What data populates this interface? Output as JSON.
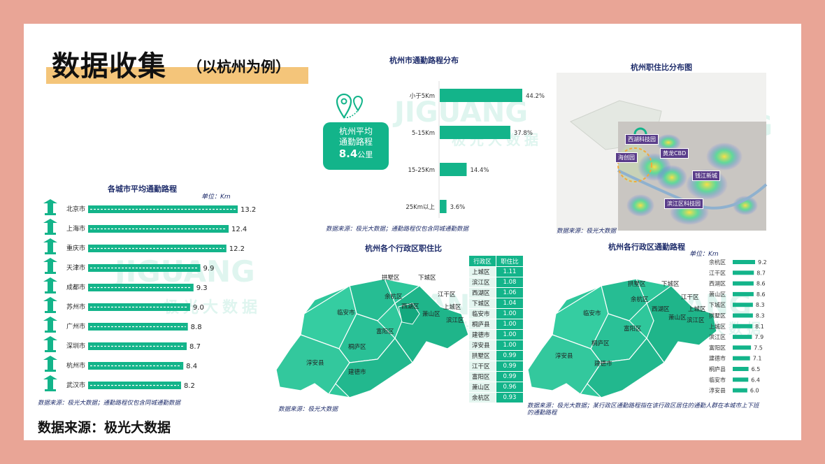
{
  "header": {
    "title": "数据收集",
    "subtitle": "（以杭州为例）"
  },
  "footer": {
    "source": "数据来源：极光大数据"
  },
  "watermark": {
    "brand": "JIGUANG",
    "cn": "极光大数据"
  },
  "colors": {
    "accent": "#13b48a",
    "page_bg": "#e9a596",
    "title_highlight": "#f4c57a",
    "label_navy": "#1f2d6b",
    "heat_tag": "#5a3d8a"
  },
  "city_chart": {
    "title": "各城市平均通勤路程",
    "unit": "单位：Km",
    "source": "数据来源：极光大数据；通勤路程仅包含同城通勤数据"
  },
  "distribution_chart": {
    "title": "杭州市通勤路程分布",
    "source": "数据来源：极光大数据；通勤路程仅包含同城通勤数据",
    "badge": {
      "line1": "杭州平均",
      "line2": "通勤路程",
      "value": "8.4",
      "unit": "公里"
    }
  },
  "heatmap_panel": {
    "title": "杭州职住比分布图",
    "source": "数据来源：极光大数据",
    "tags": [
      "西湖科技园",
      "黄龙CBD",
      "海创园",
      "钱江新城",
      "滨江区科技园"
    ]
  },
  "ratio_panel": {
    "title": "杭州各个行政区职住比",
    "source": "数据来源：极光大数据",
    "table_headers": [
      "行政区",
      "职住比"
    ],
    "map_labels": [
      "拱墅区",
      "下城区",
      "江干区",
      "余杭区",
      "上城区",
      "西湖区",
      "滨江区",
      "萧山区",
      "临安市",
      "富阳区",
      "桐庐区",
      "淳安县",
      "建德市"
    ]
  },
  "district_commute_panel": {
    "title": "杭州各行政区通勤路程",
    "unit": "单位：Km",
    "source_line1": "数据来源：极光大数据；某行政区通勤路程指在该行政区居住的通勤人群在本城市上下班",
    "source_line2": "的通勤路程",
    "map_labels": [
      "拱墅区",
      "下城区",
      "江干区",
      "余杭区",
      "上城区",
      "西湖区",
      "滨江区",
      "萧山区",
      "临安市",
      "富阳区",
      "桐庐区",
      "淳安县",
      "建德市"
    ]
  },
  "chart_data": [
    {
      "type": "bar",
      "title": "各城市平均通勤路程",
      "orientation": "horizontal",
      "categories": [
        "北京市",
        "上海市",
        "重庆市",
        "天津市",
        "成都市",
        "苏州市",
        "广州市",
        "深圳市",
        "杭州市",
        "武汉市"
      ],
      "values": [
        13.2,
        12.4,
        12.2,
        9.9,
        9.3,
        9.0,
        8.8,
        8.7,
        8.4,
        8.2
      ],
      "value_labels": [
        "13.2",
        "12.4",
        "12.2",
        "9.9",
        "9.3",
        "9.0",
        "8.8",
        "8.7",
        "8.4",
        "8.2"
      ],
      "xlim": [
        0,
        14
      ]
    },
    {
      "type": "bar",
      "title": "杭州市通勤路程分布",
      "orientation": "horizontal",
      "categories": [
        "小于5Km",
        "5-15Km",
        "15-25Km",
        "25Km以上"
      ],
      "values": [
        44.2,
        37.8,
        14.4,
        3.6
      ],
      "value_labels": [
        "44.2%",
        "37.8%",
        "14.4%",
        "3.6%"
      ],
      "xlim": [
        0,
        50
      ]
    },
    {
      "type": "table",
      "title": "杭州各个行政区职住比",
      "columns": [
        "行政区",
        "职住比"
      ],
      "rows": [
        [
          "上城区",
          "1.11"
        ],
        [
          "滨江区",
          "1.08"
        ],
        [
          "西湖区",
          "1.06"
        ],
        [
          "下城区",
          "1.04"
        ],
        [
          "临安市",
          "1.00"
        ],
        [
          "桐庐县",
          "1.00"
        ],
        [
          "建德市",
          "1.00"
        ],
        [
          "淳安县",
          "1.00"
        ],
        [
          "拱墅区",
          "0.99"
        ],
        [
          "江干区",
          "0.99"
        ],
        [
          "富阳区",
          "0.99"
        ],
        [
          "萧山区",
          "0.96"
        ],
        [
          "余杭区",
          "0.93"
        ]
      ]
    },
    {
      "type": "bar",
      "title": "杭州各行政区通勤路程",
      "orientation": "horizontal",
      "categories": [
        "余杭区",
        "江干区",
        "西湖区",
        "萧山区",
        "下城区",
        "拱墅区",
        "上城区",
        "滨江区",
        "富阳区",
        "建德市",
        "桐庐县",
        "临安市",
        "淳安县"
      ],
      "values": [
        9.2,
        8.7,
        8.6,
        8.6,
        8.3,
        8.3,
        8.1,
        7.9,
        7.5,
        7.1,
        6.5,
        6.4,
        6.0
      ],
      "value_labels": [
        "9.2",
        "8.7",
        "8.6",
        "8.6",
        "8.3",
        "8.3",
        "8.1",
        "7.9",
        "7.5",
        "7.1",
        "6.5",
        "6.4",
        "6.0"
      ],
      "xlim": [
        0,
        10
      ]
    }
  ]
}
